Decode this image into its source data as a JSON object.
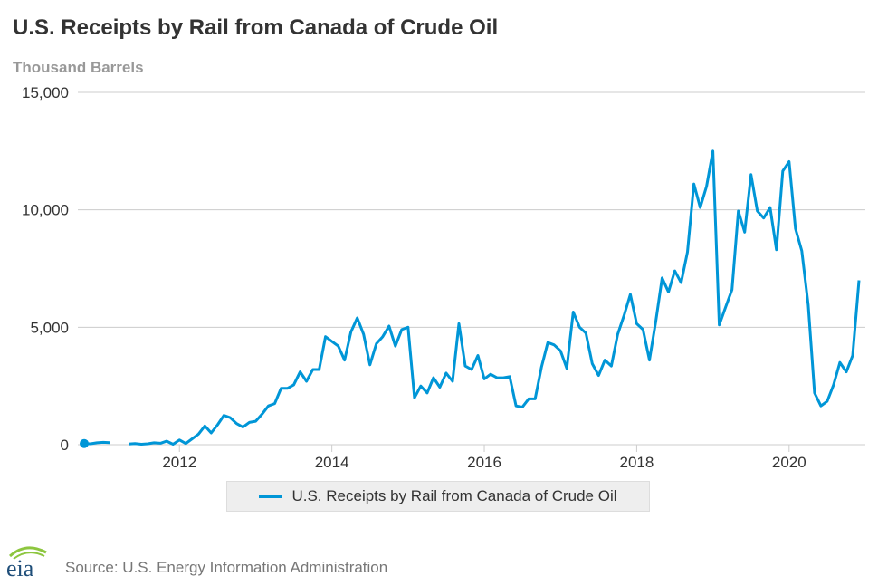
{
  "header": {
    "title": "U.S. Receipts by Rail from Canada of Crude Oil",
    "unit_label": "Thousand Barrels"
  },
  "footer": {
    "source": "Source: U.S. Energy Information Administration",
    "logo_text": "eia"
  },
  "colors": {
    "series": "#0096d7",
    "grid": "#cccccc",
    "axis_text": "#333333",
    "logo_text": "#1f4e79",
    "logo_accent": "#8dc63f"
  },
  "chart_data": {
    "type": "line",
    "title": "U.S. Receipts by Rail from Canada of Crude Oil",
    "ylabel": "Thousand Barrels",
    "xlabel": "",
    "ylim": [
      0,
      15000
    ],
    "xlim": [
      "2010-09",
      "2021-01"
    ],
    "y_ticks": [
      0,
      5000,
      10000,
      15000
    ],
    "y_tick_labels": [
      "0",
      "5,000",
      "10,000",
      "15,000"
    ],
    "x_ticks": [
      "2012-01",
      "2014-01",
      "2016-01",
      "2018-01",
      "2020-01"
    ],
    "x_tick_labels": [
      "2012",
      "2014",
      "2016",
      "2018",
      "2020"
    ],
    "grid": true,
    "legend": "bottom-center",
    "series": [
      {
        "name": "U.S. Receipts by Rail from Canada of Crude Oil",
        "segments": [
          {
            "points": [
              [
                "2010-10",
                50
              ],
              [
                "2010-11",
                40
              ],
              [
                "2010-12",
                80
              ],
              [
                "2011-01",
                100
              ],
              [
                "2011-02",
                90
              ]
            ]
          },
          {
            "points": [
              [
                "2011-05",
                30
              ],
              [
                "2011-06",
                50
              ],
              [
                "2011-07",
                20
              ],
              [
                "2011-08",
                40
              ],
              [
                "2011-09",
                80
              ],
              [
                "2011-10",
                60
              ],
              [
                "2011-11",
                150
              ],
              [
                "2011-12",
                20
              ],
              [
                "2012-01",
                200
              ],
              [
                "2012-02",
                50
              ],
              [
                "2012-03",
                250
              ],
              [
                "2012-04",
                450
              ],
              [
                "2012-05",
                800
              ],
              [
                "2012-06",
                500
              ],
              [
                "2012-07",
                850
              ],
              [
                "2012-08",
                1250
              ],
              [
                "2012-09",
                1150
              ],
              [
                "2012-10",
                900
              ],
              [
                "2012-11",
                750
              ],
              [
                "2012-12",
                950
              ],
              [
                "2013-01",
                1000
              ],
              [
                "2013-02",
                1300
              ],
              [
                "2013-03",
                1650
              ],
              [
                "2013-04",
                1750
              ],
              [
                "2013-05",
                2400
              ],
              [
                "2013-06",
                2400
              ],
              [
                "2013-07",
                2550
              ],
              [
                "2013-08",
                3100
              ],
              [
                "2013-09",
                2700
              ],
              [
                "2013-10",
                3200
              ],
              [
                "2013-11",
                3200
              ],
              [
                "2013-12",
                4600
              ],
              [
                "2014-01",
                4400
              ],
              [
                "2014-02",
                4200
              ],
              [
                "2014-03",
                3600
              ],
              [
                "2014-04",
                4800
              ],
              [
                "2014-05",
                5400
              ],
              [
                "2014-06",
                4700
              ],
              [
                "2014-07",
                3400
              ],
              [
                "2014-08",
                4300
              ],
              [
                "2014-09",
                4600
              ],
              [
                "2014-10",
                5050
              ],
              [
                "2014-11",
                4200
              ],
              [
                "2014-12",
                4900
              ],
              [
                "2015-01",
                5000
              ],
              [
                "2015-02",
                2000
              ],
              [
                "2015-03",
                2500
              ],
              [
                "2015-04",
                2200
              ],
              [
                "2015-05",
                2850
              ],
              [
                "2015-06",
                2450
              ],
              [
                "2015-07",
                3050
              ],
              [
                "2015-08",
                2700
              ],
              [
                "2015-09",
                5150
              ],
              [
                "2015-10",
                3350
              ],
              [
                "2015-11",
                3200
              ],
              [
                "2015-12",
                3800
              ],
              [
                "2016-01",
                2800
              ],
              [
                "2016-02",
                3000
              ],
              [
                "2016-03",
                2850
              ],
              [
                "2016-04",
                2850
              ],
              [
                "2016-05",
                2900
              ],
              [
                "2016-06",
                1650
              ],
              [
                "2016-07",
                1600
              ],
              [
                "2016-08",
                1950
              ],
              [
                "2016-09",
                1950
              ],
              [
                "2016-10",
                3300
              ],
              [
                "2016-11",
                4350
              ],
              [
                "2016-12",
                4250
              ],
              [
                "2017-01",
                4000
              ],
              [
                "2017-02",
                3250
              ],
              [
                "2017-03",
                5650
              ],
              [
                "2017-04",
                5000
              ],
              [
                "2017-05",
                4750
              ],
              [
                "2017-06",
                3450
              ],
              [
                "2017-07",
                2950
              ],
              [
                "2017-08",
                3600
              ],
              [
                "2017-09",
                3350
              ],
              [
                "2017-10",
                4700
              ],
              [
                "2017-11",
                5500
              ],
              [
                "2017-12",
                6400
              ],
              [
                "2018-01",
                5150
              ],
              [
                "2018-02",
                4900
              ],
              [
                "2018-03",
                3600
              ],
              [
                "2018-04",
                5250
              ],
              [
                "2018-05",
                7100
              ],
              [
                "2018-06",
                6500
              ],
              [
                "2018-07",
                7400
              ],
              [
                "2018-08",
                6900
              ],
              [
                "2018-09",
                8200
              ],
              [
                "2018-10",
                11100
              ],
              [
                "2018-11",
                10100
              ],
              [
                "2018-12",
                11000
              ],
              [
                "2019-01",
                12500
              ],
              [
                "2019-02",
                5100
              ],
              [
                "2019-03",
                5850
              ],
              [
                "2019-04",
                6600
              ],
              [
                "2019-05",
                9950
              ],
              [
                "2019-06",
                9050
              ],
              [
                "2019-07",
                11500
              ],
              [
                "2019-08",
                9950
              ],
              [
                "2019-09",
                9650
              ],
              [
                "2019-10",
                10100
              ],
              [
                "2019-11",
                8300
              ],
              [
                "2019-12",
                11650
              ],
              [
                "2020-01",
                12050
              ],
              [
                "2020-02",
                9200
              ],
              [
                "2020-03",
                8250
              ],
              [
                "2020-04",
                5950
              ],
              [
                "2020-05",
                2200
              ],
              [
                "2020-06",
                1650
              ],
              [
                "2020-07",
                1850
              ],
              [
                "2020-08",
                2550
              ],
              [
                "2020-09",
                3500
              ],
              [
                "2020-10",
                3100
              ],
              [
                "2020-11",
                3800
              ],
              [
                "2020-12",
                7000
              ]
            ]
          }
        ]
      }
    ]
  }
}
